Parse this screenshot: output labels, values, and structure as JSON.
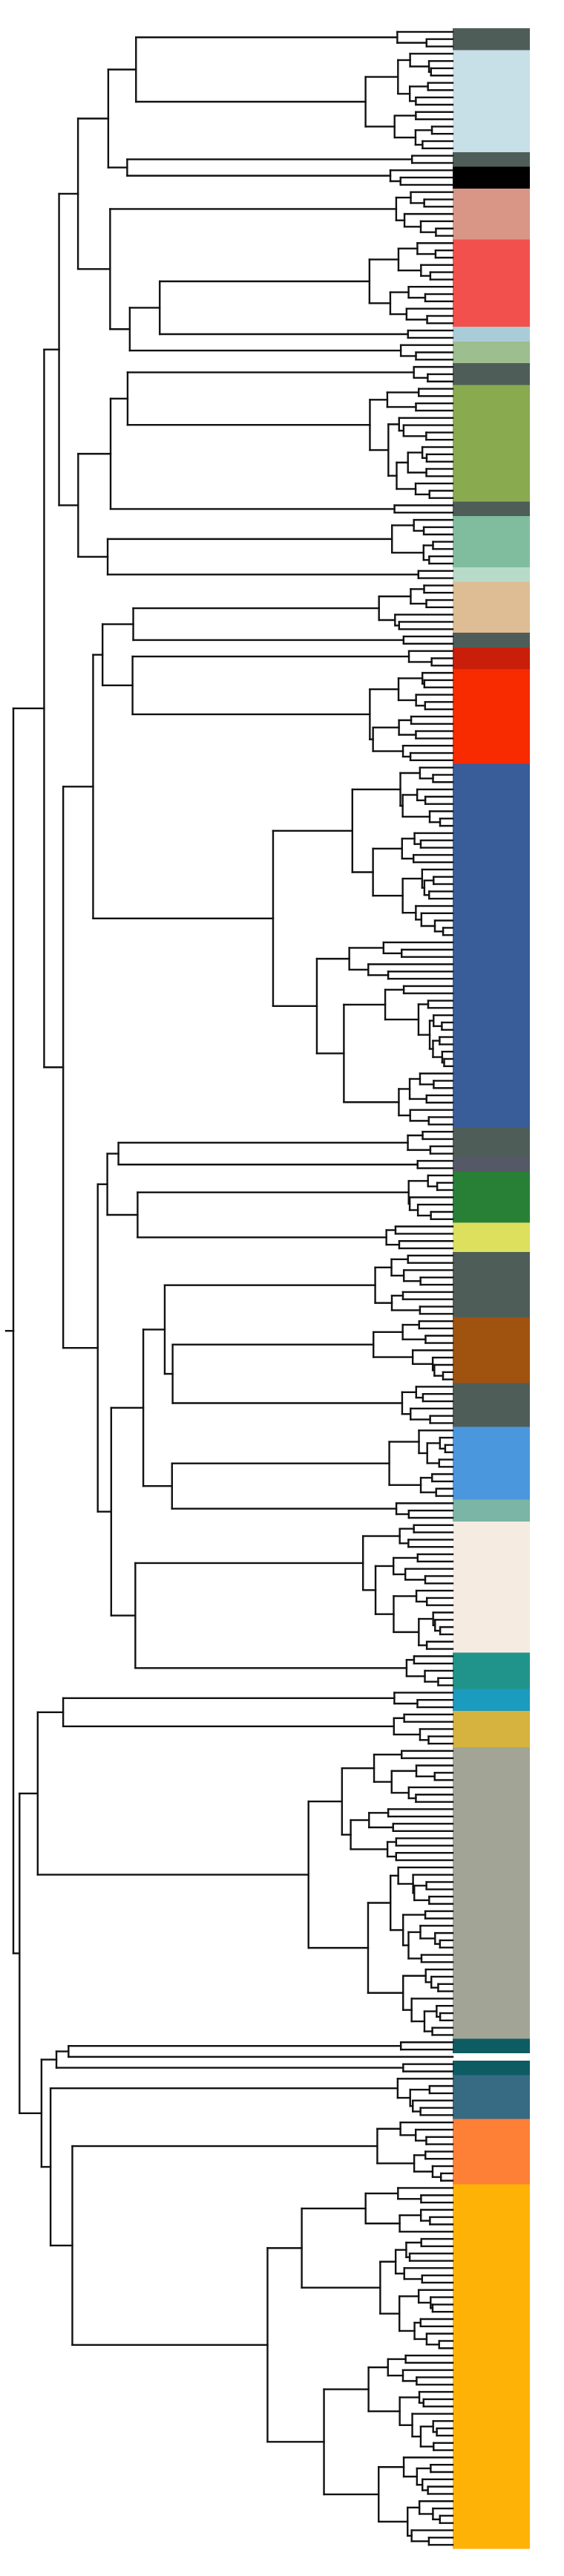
{
  "tree": {
    "clades": [
      {
        "color": "#4f5d58",
        "tips": 3
      },
      {
        "color": "#c7dfe6",
        "tips": 14
      },
      {
        "color": "#4f5d58",
        "tips": 2
      },
      {
        "color": "#000000",
        "tips": 3
      },
      {
        "color": "#d99686",
        "tips": 7
      },
      {
        "color": "#f2504c",
        "tips": 12
      },
      {
        "color": "#a8cdd9",
        "tips": 2
      },
      {
        "color": "#9dbe8e",
        "tips": 3
      },
      {
        "color": "#4f5d58",
        "tips": 3
      },
      {
        "color": "#8aaa50",
        "tips": 16
      },
      {
        "color": "#4f5d58",
        "tips": 2
      },
      {
        "color": "#80bd9e",
        "tips": 7
      },
      {
        "color": "#b8dbc9",
        "tips": 2
      },
      {
        "color": "#debd95",
        "tips": 7
      },
      {
        "color": "#4f5d58",
        "tips": 2
      },
      {
        "color": "#c91e0a",
        "tips": 3
      },
      {
        "color": "#f72a00",
        "tips": 13
      },
      {
        "color": "#385d99",
        "tips": 50
      },
      {
        "color": "#4f5d58",
        "tips": 4
      },
      {
        "color": "#555866",
        "tips": 2
      },
      {
        "color": "#288037",
        "tips": 7
      },
      {
        "color": "#dde05c",
        "tips": 4
      },
      {
        "color": "#4f5d58",
        "tips": 9
      },
      {
        "color": "#a0520f",
        "tips": 9
      },
      {
        "color": "#4f5d58",
        "tips": 6
      },
      {
        "color": "#4a97de",
        "tips": 10
      },
      {
        "color": "#7ab5a6",
        "tips": 3
      },
      {
        "color": "#f5ebe0",
        "tips": 18
      },
      {
        "color": "#20948b",
        "tips": 5
      },
      {
        "color": "#1b9bbd",
        "tips": 3
      },
      {
        "color": "#d6b23e",
        "tips": 5
      },
      {
        "color": "#a2a596",
        "tips": 40
      },
      {
        "color": "#0d5c63",
        "tips": 2
      },
      {
        "color": "#ffffff",
        "tips": 1
      },
      {
        "color": "#0d5c63",
        "tips": 2
      },
      {
        "color": "#376b84",
        "tips": 6
      },
      {
        "color": "#fe7f36",
        "tips": 9
      },
      {
        "color": "#feb206",
        "tips": 50
      }
    ]
  }
}
